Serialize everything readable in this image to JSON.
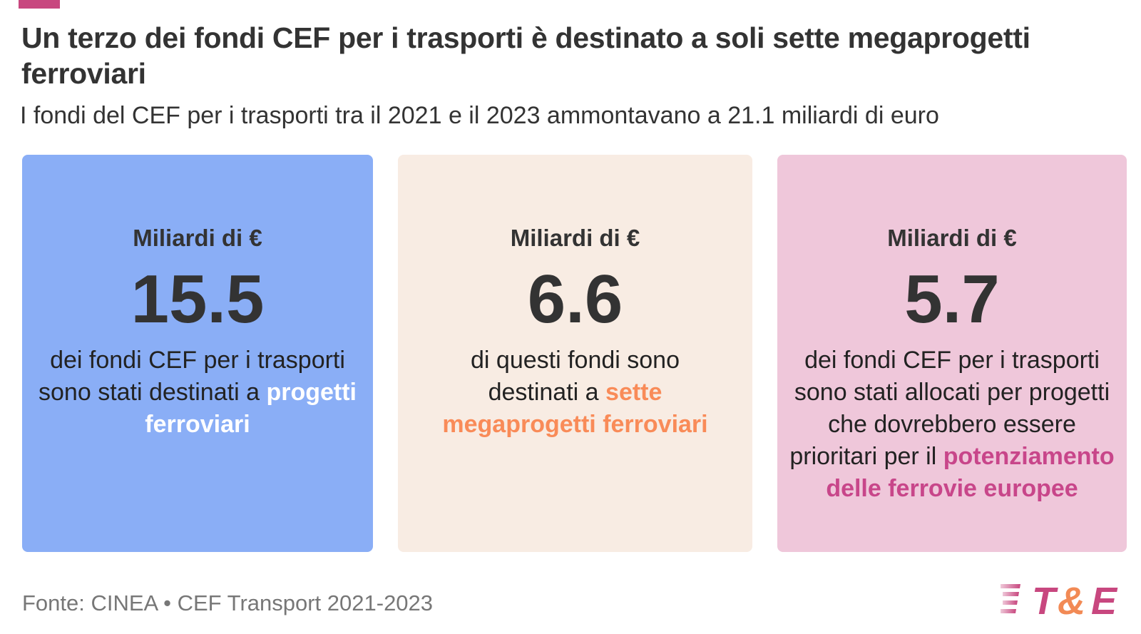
{
  "header": {
    "title": "Un terzo dei fondi CEF per i trasporti è destinato a soli sette megaprogetti ferroviari",
    "subtitle": "I fondi del CEF per i trasporti tra il 2021 e il 2023 ammontavano a 21.1 miliardi di euro"
  },
  "cards": [
    {
      "unit": "Miliardi di €",
      "value": "15.5",
      "text": "dei fondi CEF per i trasporti sono stati destinati a ",
      "highlight": "progetti ferroviari",
      "color": "#8aaef6",
      "highlight_color": "#ffffff"
    },
    {
      "unit": "Miliardi di €",
      "value": "6.6",
      "text": "di questi fondi sono destinati a ",
      "highlight": "sette megaprogetti ferroviari",
      "color": "#f8ece3",
      "highlight_color": "#f98b58"
    },
    {
      "unit": "Miliardi di €",
      "value": "5.7",
      "text": "dei fondi CEF per i trasporti sono stati allocati per progetti che dovrebbero essere prioritari per il ",
      "highlight": "potenziamento delle ferrovie europee",
      "color": "#efc7da",
      "highlight_color": "#c8468a"
    }
  ],
  "footer": {
    "source": "Fonte: CINEA • CEF Transport 2021-2023",
    "logo_text": "T&E"
  },
  "colors": {
    "accent": "#c8477f",
    "logo_orange": "#f28a55"
  }
}
